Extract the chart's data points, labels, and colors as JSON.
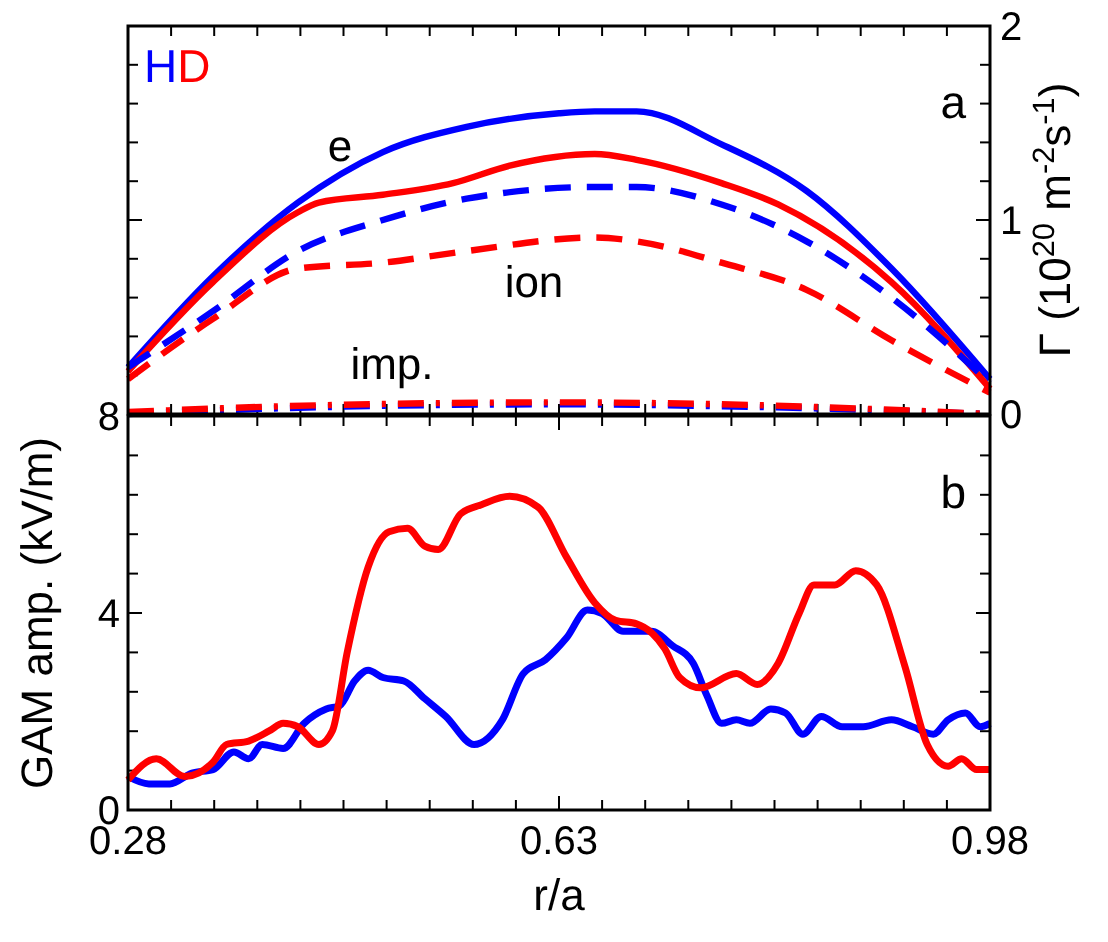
{
  "chart_data": [
    {
      "type": "line",
      "xlim": [
        0.28,
        0.98
      ],
      "xticks": [
        {
          "value": 0.28,
          "label": null
        },
        {
          "value": 0.315,
          "label": null
        },
        {
          "value": 0.35,
          "label": null
        },
        {
          "value": 0.385,
          "label": null
        },
        {
          "value": 0.42,
          "label": null
        },
        {
          "value": 0.455,
          "label": null
        },
        {
          "value": 0.49,
          "label": null
        },
        {
          "value": 0.525,
          "label": null
        },
        {
          "value": 0.56,
          "label": null
        },
        {
          "value": 0.595,
          "label": null
        },
        {
          "value": 0.63,
          "label": null
        },
        {
          "value": 0.665,
          "label": null
        },
        {
          "value": 0.7,
          "label": null
        },
        {
          "value": 0.735,
          "label": null
        },
        {
          "value": 0.77,
          "label": null
        },
        {
          "value": 0.805,
          "label": null
        },
        {
          "value": 0.84,
          "label": null
        },
        {
          "value": 0.875,
          "label": null
        },
        {
          "value": 0.91,
          "label": null
        },
        {
          "value": 0.945,
          "label": null
        },
        {
          "value": 0.98,
          "label": null
        }
      ],
      "ylim": [
        0,
        2
      ],
      "yticks": [
        0,
        {
          "value": 0.2,
          "label": null
        },
        {
          "value": 0.4,
          "label": null
        },
        {
          "value": 0.6,
          "label": null
        },
        {
          "value": 0.8,
          "label": null
        },
        1,
        {
          "value": 1.2,
          "label": null
        },
        {
          "value": 1.4,
          "label": null
        },
        {
          "value": 1.6,
          "label": null
        },
        {
          "value": 1.8,
          "label": null
        },
        2
      ],
      "ylabel": "Γ (10$^{20}$ m$^{-2}$s$^{-1}$)",
      "tick_labels": "y",
      "legend": "top left",
      "grid": false,
      "annotations": [
        "a",
        "e",
        "ion",
        "imp."
      ],
      "series": [
        {
          "name": "H",
          "color": "#0000ff",
          "line_style": "solid",
          "x": [
            0.28,
            0.349,
            0.418,
            0.487,
            0.555,
            0.63,
            0.659,
            0.693,
            0.762,
            0.831,
            0.9,
            0.98
          ],
          "values": [
            0.24,
            0.71,
            1.09,
            1.35,
            1.48,
            1.55,
            1.56,
            1.56,
            1.39,
            1.15,
            0.75,
            0.18
          ]
        },
        {
          "name": "D",
          "color": "#ff0000",
          "line_style": "solid",
          "x": [
            0.28,
            0.349,
            0.418,
            0.435,
            0.487,
            0.544,
            0.59,
            0.659,
            0.693,
            0.762,
            0.808,
            0.9,
            0.98
          ],
          "values": [
            0.22,
            0.68,
            1.04,
            1.09,
            1.13,
            1.19,
            1.28,
            1.34,
            1.31,
            1.19,
            1.08,
            0.68,
            0.13
          ]
        },
        {
          "color": "#0000ff",
          "line_style": "dashed",
          "x": [
            0.28,
            0.349,
            0.418,
            0.487,
            0.555,
            0.659,
            0.693,
            0.762,
            0.831,
            0.9,
            0.98
          ],
          "values": [
            0.24,
            0.53,
            0.84,
            1.0,
            1.11,
            1.17,
            1.17,
            1.08,
            0.89,
            0.6,
            0.16
          ]
        },
        {
          "color": "#ff0000",
          "line_style": "dashed",
          "x": [
            0.28,
            0.349,
            0.418,
            0.487,
            0.555,
            0.659,
            0.693,
            0.762,
            0.831,
            0.9,
            0.98
          ],
          "values": [
            0.18,
            0.49,
            0.75,
            0.78,
            0.84,
            0.91,
            0.89,
            0.78,
            0.64,
            0.38,
            0.11
          ]
        },
        {
          "color": "#0000ff",
          "line_style": "dashdot",
          "x": [
            0.28,
            0.406,
            0.63,
            0.762,
            0.98
          ],
          "values": [
            0.0,
            0.03,
            0.05,
            0.04,
            0.0
          ]
        },
        {
          "color": "#ff0000",
          "line_style": "dashdot",
          "x": [
            0.28,
            0.406,
            0.63,
            0.762,
            0.98
          ],
          "values": [
            0.01,
            0.04,
            0.06,
            0.05,
            0.0
          ]
        }
      ]
    },
    {
      "type": "line",
      "xlim": [
        0.28,
        0.98
      ],
      "xticks": [
        0.28,
        {
          "value": 0.315,
          "label": null
        },
        {
          "value": 0.35,
          "label": null
        },
        {
          "value": 0.385,
          "label": null
        },
        {
          "value": 0.42,
          "label": null
        },
        {
          "value": 0.455,
          "label": null
        },
        {
          "value": 0.49,
          "label": null
        },
        {
          "value": 0.525,
          "label": null
        },
        {
          "value": 0.56,
          "label": null
        },
        {
          "value": 0.595,
          "label": null
        },
        0.63,
        {
          "value": 0.665,
          "label": null
        },
        {
          "value": 0.7,
          "label": null
        },
        {
          "value": 0.735,
          "label": null
        },
        {
          "value": 0.77,
          "label": null
        },
        {
          "value": 0.805,
          "label": null
        },
        {
          "value": 0.84,
          "label": null
        },
        {
          "value": 0.875,
          "label": null
        },
        {
          "value": 0.91,
          "label": null
        },
        {
          "value": 0.945,
          "label": null
        },
        0.98
      ],
      "ylim": [
        0,
        8
      ],
      "yticks": [
        0,
        {
          "value": 0.8,
          "label": null
        },
        {
          "value": 1.6,
          "label": null
        },
        {
          "value": 2.4,
          "label": null
        },
        {
          "value": 3.2,
          "label": null
        },
        4,
        {
          "value": 4.8,
          "label": null
        },
        {
          "value": 5.6,
          "label": null
        },
        {
          "value": 6.4,
          "label": null
        },
        {
          "value": 7.2,
          "label": null
        },
        8
      ],
      "xlabel": "r/a",
      "ylabel": "GAM amp. (kV/m)",
      "grid": false,
      "annotations": [
        "b"
      ],
      "series": [
        {
          "color": "#0000ff",
          "line_style": "solid",
          "x": [
            0.28,
            0.297,
            0.314,
            0.332,
            0.349,
            0.366,
            0.378,
            0.389,
            0.406,
            0.423,
            0.441,
            0.452,
            0.464,
            0.475,
            0.487,
            0.504,
            0.521,
            0.538,
            0.561,
            0.584,
            0.601,
            0.619,
            0.636,
            0.653,
            0.665,
            0.682,
            0.705,
            0.722,
            0.739,
            0.75,
            0.762,
            0.774,
            0.785,
            0.802,
            0.814,
            0.828,
            0.843,
            0.86,
            0.877,
            0.9,
            0.917,
            0.934,
            0.946,
            0.96,
            0.972,
            0.98
          ],
          "values": [
            0.68,
            0.53,
            0.53,
            0.75,
            0.82,
            1.18,
            1.04,
            1.33,
            1.25,
            1.76,
            2.05,
            2.12,
            2.62,
            2.84,
            2.69,
            2.62,
            2.26,
            1.9,
            1.33,
            1.83,
            2.77,
            3.05,
            3.49,
            4.06,
            3.99,
            3.63,
            3.63,
            3.34,
            2.98,
            2.33,
            1.76,
            1.83,
            1.76,
            2.05,
            1.97,
            1.54,
            1.9,
            1.69,
            1.69,
            1.83,
            1.69,
            1.54,
            1.83,
            1.97,
            1.69,
            1.76
          ]
        },
        {
          "color": "#ff0000",
          "line_style": "solid",
          "x": [
            0.28,
            0.303,
            0.326,
            0.349,
            0.36,
            0.378,
            0.395,
            0.406,
            0.418,
            0.435,
            0.446,
            0.458,
            0.475,
            0.492,
            0.507,
            0.521,
            0.532,
            0.55,
            0.567,
            0.59,
            0.613,
            0.636,
            0.659,
            0.676,
            0.693,
            0.716,
            0.728,
            0.745,
            0.774,
            0.791,
            0.808,
            0.825,
            0.837,
            0.854,
            0.871,
            0.888,
            0.911,
            0.929,
            0.946,
            0.957,
            0.969,
            0.98
          ],
          "values": [
            0.61,
            1.04,
            0.68,
            0.97,
            1.33,
            1.4,
            1.61,
            1.76,
            1.69,
            1.33,
            1.61,
            3.2,
            4.93,
            5.65,
            5.72,
            5.36,
            5.29,
            6.01,
            6.2,
            6.37,
            6.15,
            5.14,
            4.21,
            3.85,
            3.78,
            3.27,
            2.69,
            2.48,
            2.77,
            2.55,
            2.98,
            3.99,
            4.57,
            4.57,
            4.86,
            4.57,
            2.91,
            1.33,
            0.89,
            1.04,
            0.82,
            0.82
          ]
        }
      ]
    }
  ]
}
